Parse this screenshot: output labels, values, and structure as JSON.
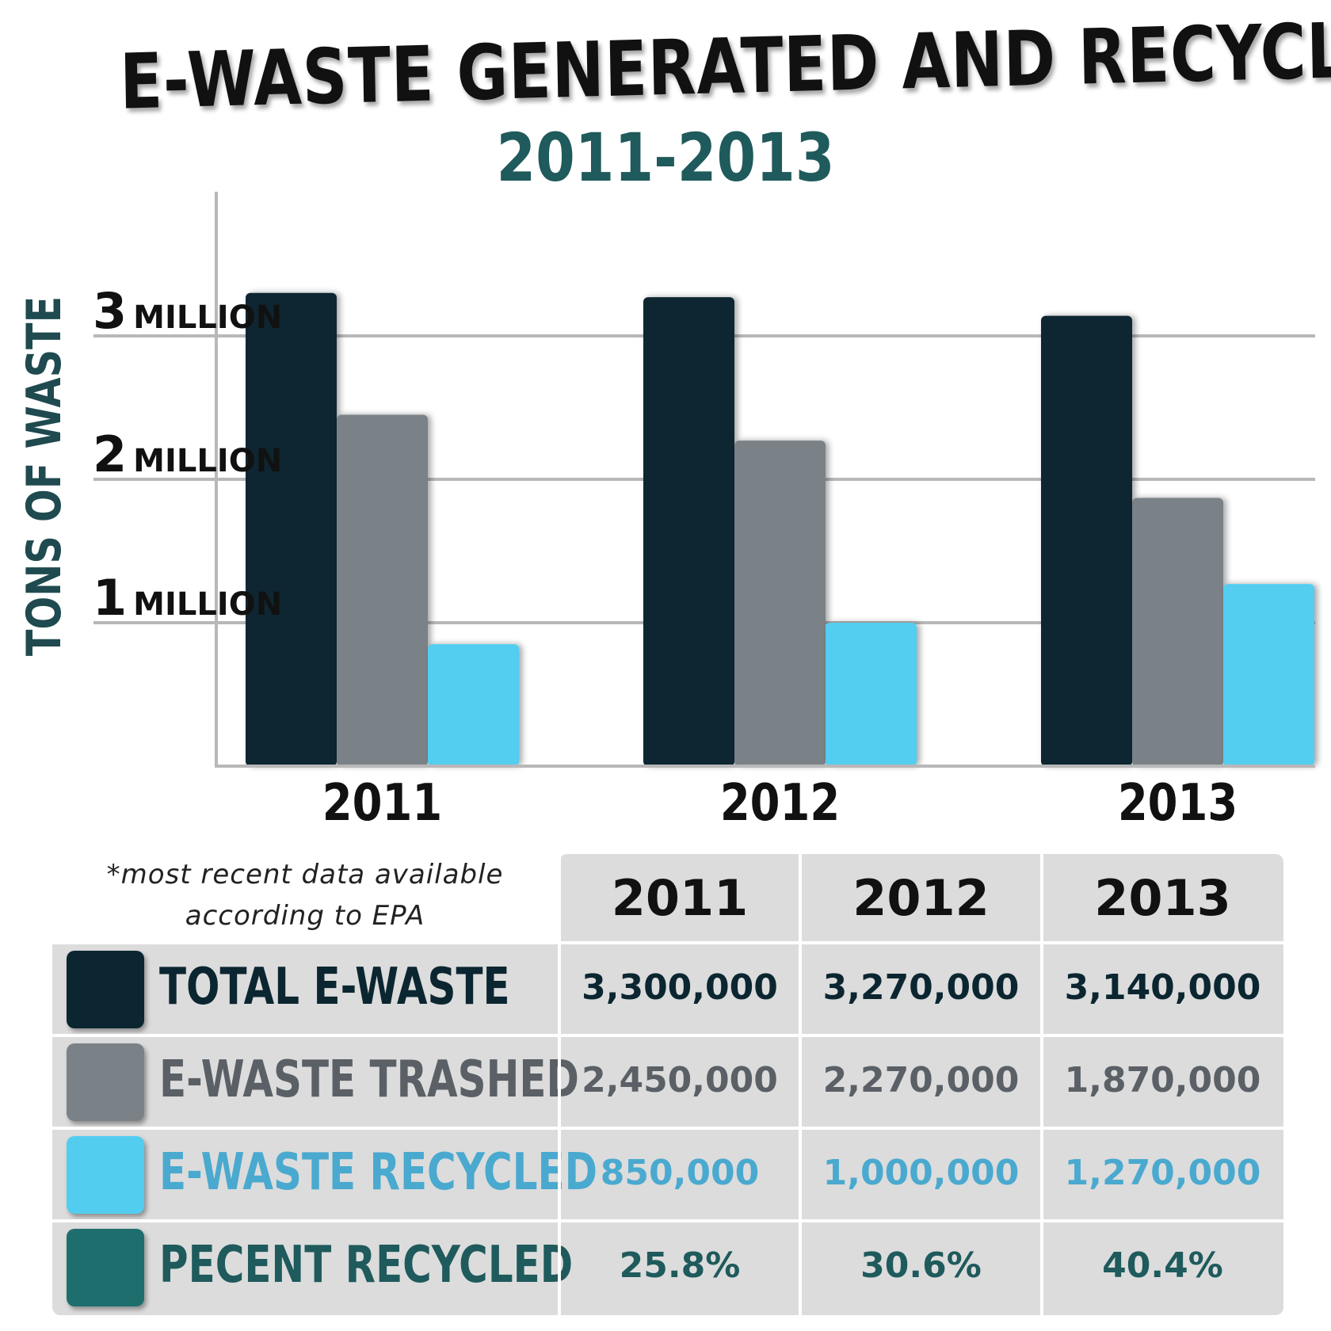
{
  "title": "E-WASTE GENERATED AND RECYCLED",
  "subtitle": "2011-2013",
  "colors": {
    "total": "#0b2630",
    "trashed": "#7a8288",
    "recycled": "#52cdf0",
    "percent": "#1f6e6e",
    "subtitle": "#1f5a5c",
    "grid": "#b8b8b8",
    "ylabel": "#1f4a4f",
    "recycled_text": "#4aa9cf",
    "trashed_text": "#5a6066",
    "total_text": "#0b2630",
    "percent_text": "#1f5a5c"
  },
  "chart_data": {
    "type": "bar",
    "categories": [
      "2011",
      "2012",
      "2013"
    ],
    "series": [
      {
        "name": "TOTAL E-WASTE",
        "values": [
          3300000,
          3270000,
          3140000
        ]
      },
      {
        "name": "E-WASTE TRASHED",
        "values": [
          2450000,
          2270000,
          1870000
        ]
      },
      {
        "name": "E-WASTE RECYCLED",
        "values": [
          850000,
          1000000,
          1270000
        ]
      }
    ],
    "ylabel": "TONS OF WASTE",
    "ylim": [
      0,
      4000000
    ],
    "yticks": [
      {
        "num": "1",
        "word": "MILLION",
        "value": 1000000
      },
      {
        "num": "2",
        "word": "MILLION",
        "value": 2000000
      },
      {
        "num": "3",
        "word": "MILLION",
        "value": 3000000
      }
    ],
    "grid": true
  },
  "note": {
    "line1": "*most recent data available",
    "line2": "according to EPA"
  },
  "table": {
    "headers": [
      "2011",
      "2012",
      "2013"
    ],
    "rows": [
      {
        "label": "TOTAL E-WASTE",
        "values": [
          "3,300,000",
          "3,270,000",
          "3,140,000"
        ]
      },
      {
        "label": "E-WASTE TRASHED",
        "values": [
          "2,450,000",
          "2,270,000",
          "1,870,000"
        ]
      },
      {
        "label": "E-WASTE RECYCLED",
        "values": [
          "850,000",
          "1,000,000",
          "1,270,000"
        ]
      },
      {
        "label": "PECENT RECYCLED",
        "values": [
          "25.8%",
          "30.6%",
          "40.4%"
        ]
      }
    ]
  }
}
